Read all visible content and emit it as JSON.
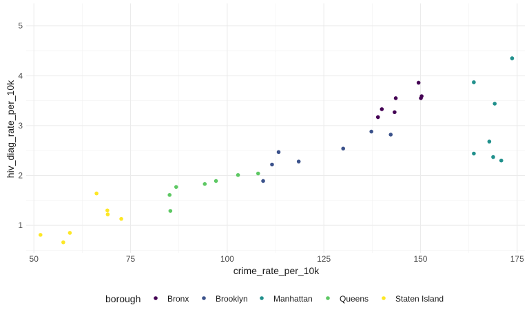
{
  "chart_data": {
    "type": "scatter",
    "title": "",
    "xlabel": "crime_rate_per_10k",
    "ylabel": "hiv_diag_rate_per_10k",
    "xlim": [
      48,
      177
    ],
    "ylim": [
      0.45,
      5.45
    ],
    "xticks": [
      50,
      75,
      100,
      125,
      150,
      175
    ],
    "yticks": [
      1,
      2,
      3,
      4,
      5
    ],
    "grid": true,
    "legend_title": "borough",
    "legend_position": "bottom",
    "series": [
      {
        "name": "Bronx",
        "color": "#440154",
        "x": [
          139,
          140,
          143.3,
          143.6,
          149.5,
          150.1,
          150.3
        ],
        "y": [
          3.17,
          3.33,
          3.27,
          3.55,
          3.86,
          3.55,
          3.59
        ]
      },
      {
        "name": "Brooklyn",
        "color": "#3b528b",
        "x": [
          109.3,
          111.6,
          113.3,
          118.5,
          130,
          137.3,
          142.3
        ],
        "y": [
          1.89,
          2.22,
          2.47,
          2.28,
          2.54,
          2.88,
          2.82
        ]
      },
      {
        "name": "Manhattan",
        "color": "#21908c",
        "x": [
          163.8,
          163.8,
          167.8,
          168.8,
          169.2,
          170.9,
          173.7
        ],
        "y": [
          3.87,
          2.44,
          2.68,
          2.37,
          3.44,
          2.3,
          4.35
        ]
      },
      {
        "name": "Queens",
        "color": "#5dc863",
        "x": [
          85.1,
          85.3,
          86.8,
          94.2,
          97.1,
          102.8,
          108
        ],
        "y": [
          1.61,
          1.29,
          1.77,
          1.83,
          1.89,
          2.01,
          2.04
        ]
      },
      {
        "name": "Staten Island",
        "color": "#fde725",
        "x": [
          51.7,
          57.6,
          59.3,
          66.2,
          69,
          69.1,
          72.6
        ],
        "y": [
          0.81,
          0.66,
          0.85,
          1.64,
          1.3,
          1.22,
          1.13
        ]
      }
    ]
  }
}
